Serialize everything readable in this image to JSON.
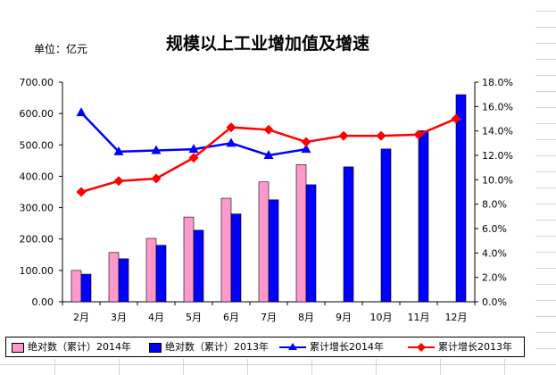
{
  "unit_label": "单位：亿元",
  "chart_data": {
    "type": "bar",
    "title": "规模以上工业增加值及增速",
    "categories": [
      "2月",
      "3月",
      "4月",
      "5月",
      "6月",
      "7月",
      "8月",
      "9月",
      "10月",
      "11月",
      "12月"
    ],
    "y_left": {
      "min": 0,
      "max": 700,
      "step": 100,
      "tick_labels": [
        "0.00",
        "100.00",
        "200.00",
        "300.00",
        "400.00",
        "500.00",
        "600.00",
        "700.00"
      ]
    },
    "y_right": {
      "min": 0,
      "max": 18,
      "step": 2,
      "tick_labels": [
        "0.0%",
        "2.0%",
        "4.0%",
        "6.0%",
        "8.0%",
        "10.0%",
        "12.0%",
        "14.0%",
        "16.0%",
        "18.0%"
      ]
    },
    "series": [
      {
        "name": "绝对数（累计）2014年",
        "kind": "bar",
        "axis": "left",
        "color": "#ff99cc",
        "values": [
          100,
          157,
          202,
          270,
          330,
          382,
          437,
          null,
          null,
          null,
          null
        ]
      },
      {
        "name": "绝对数（累计）2013年",
        "kind": "bar",
        "axis": "left",
        "color": "#0000ff",
        "values": [
          88,
          137,
          180,
          228,
          280,
          325,
          373,
          430,
          487,
          545,
          660
        ]
      },
      {
        "name": "累计增长2014年",
        "kind": "line",
        "axis": "right",
        "color": "#0000ff",
        "marker": "triangle",
        "values": [
          15.5,
          12.3,
          12.4,
          12.5,
          13.0,
          12.0,
          12.5,
          null,
          null,
          null,
          null
        ]
      },
      {
        "name": "累计增长2013年",
        "kind": "line",
        "axis": "right",
        "color": "#ff0000",
        "marker": "diamond",
        "values": [
          9.0,
          9.9,
          10.1,
          11.8,
          14.3,
          14.1,
          13.1,
          13.6,
          13.6,
          13.7,
          15.0
        ]
      }
    ],
    "legend_position": "bottom",
    "grid": false
  }
}
